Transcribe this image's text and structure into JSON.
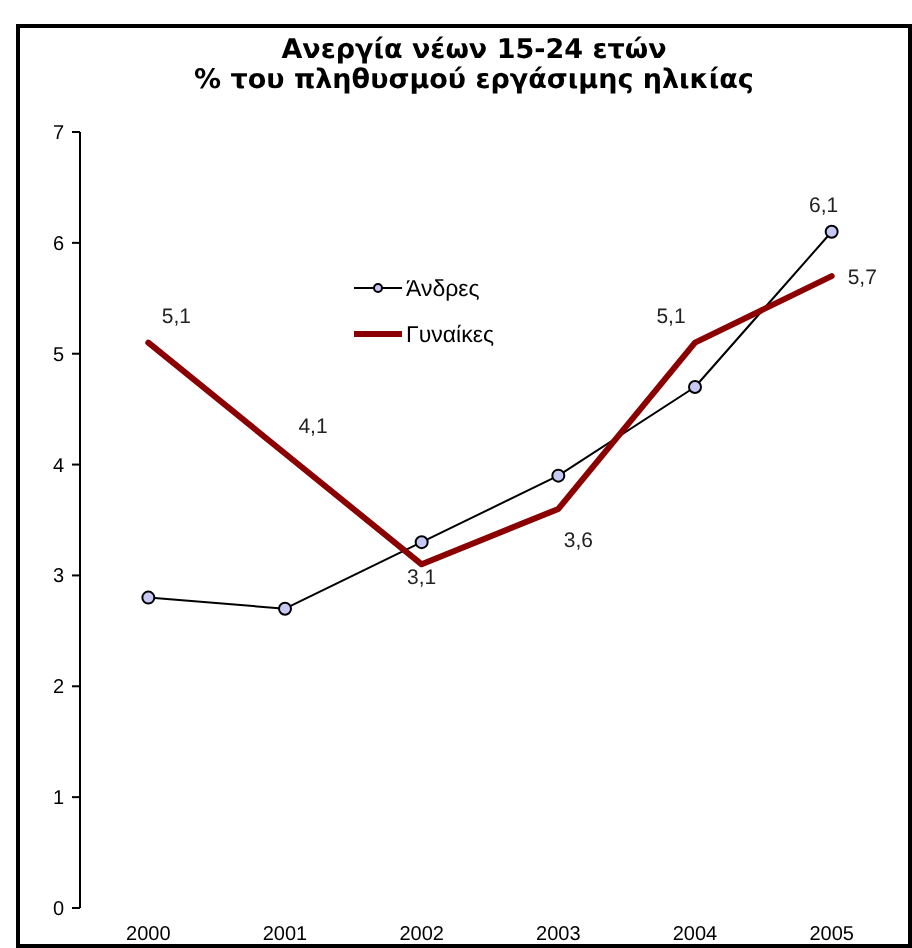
{
  "chart_data": {
    "type": "line",
    "title": "Ανεργία νέων 15-24 ετών\n% του πληθυσμού εργάσιμης ηλικίας",
    "categories": [
      "2000",
      "2001",
      "2002",
      "2003",
      "2004",
      "2005"
    ],
    "series": [
      {
        "name": "Άνδρες",
        "color": "#000000",
        "marker": "circle",
        "values": [
          2.8,
          2.7,
          3.3,
          3.9,
          4.7,
          6.1
        ],
        "value_labels": [
          null,
          null,
          null,
          null,
          null,
          "6,1"
        ]
      },
      {
        "name": "Γυναίκες",
        "color": "#8b0000",
        "marker": "none",
        "values": [
          5.1,
          4.1,
          3.1,
          3.6,
          5.1,
          5.7
        ],
        "value_labels": [
          "5,1",
          "4,1",
          "3,1",
          "3,6",
          "5,1",
          "5,7"
        ]
      }
    ],
    "ylim": [
      0,
      7
    ],
    "yticks": [
      0,
      1,
      2,
      3,
      4,
      5,
      6,
      7
    ],
    "legend": "top"
  }
}
